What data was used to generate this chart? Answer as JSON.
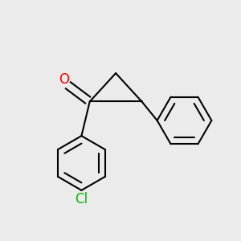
{
  "bg_color": "#ebebeb",
  "bond_color": "#000000",
  "o_color": "#ff0000",
  "cl_color": "#00bb00",
  "bond_width": 1.5,
  "font_size_o": 12,
  "font_size_cl": 12,
  "inner_ratio": 0.72
}
